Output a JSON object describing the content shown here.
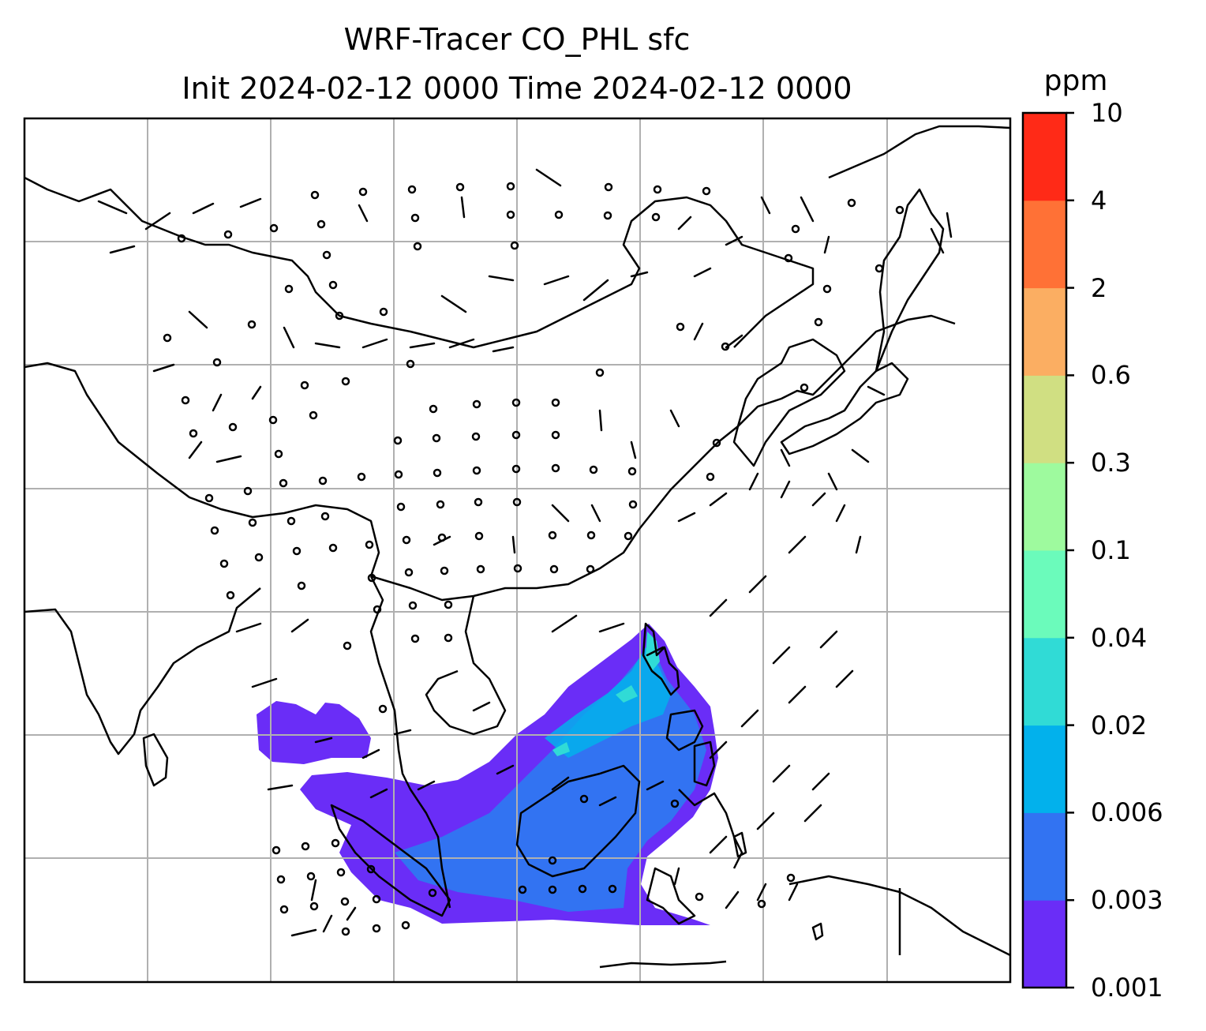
{
  "title": {
    "line1": "WRF-Tracer CO_PHL sfc",
    "line2": "Init 2024-02-12 0000 Time 2024-02-12 0000"
  },
  "colorbar": {
    "units": "ppm",
    "ticks": [
      "0.001",
      "0.003",
      "0.006",
      "0.02",
      "0.04",
      "0.1",
      "0.3",
      "0.6",
      "2",
      "4",
      "10"
    ],
    "colors": [
      "#6a2df7",
      "#3273f2",
      "#02b1ec",
      "#30dbd6",
      "#6bfbbb",
      "#9efa9e",
      "#d0df82",
      "#fbae62",
      "#ff7136",
      "#ff2a17"
    ]
  },
  "map": {
    "gridlines": "on",
    "gridline_color": "#b0b0b0",
    "coastline_color": "#000000",
    "field": "CO_PHL tracer concentration",
    "wind_barbs": "on"
  }
}
